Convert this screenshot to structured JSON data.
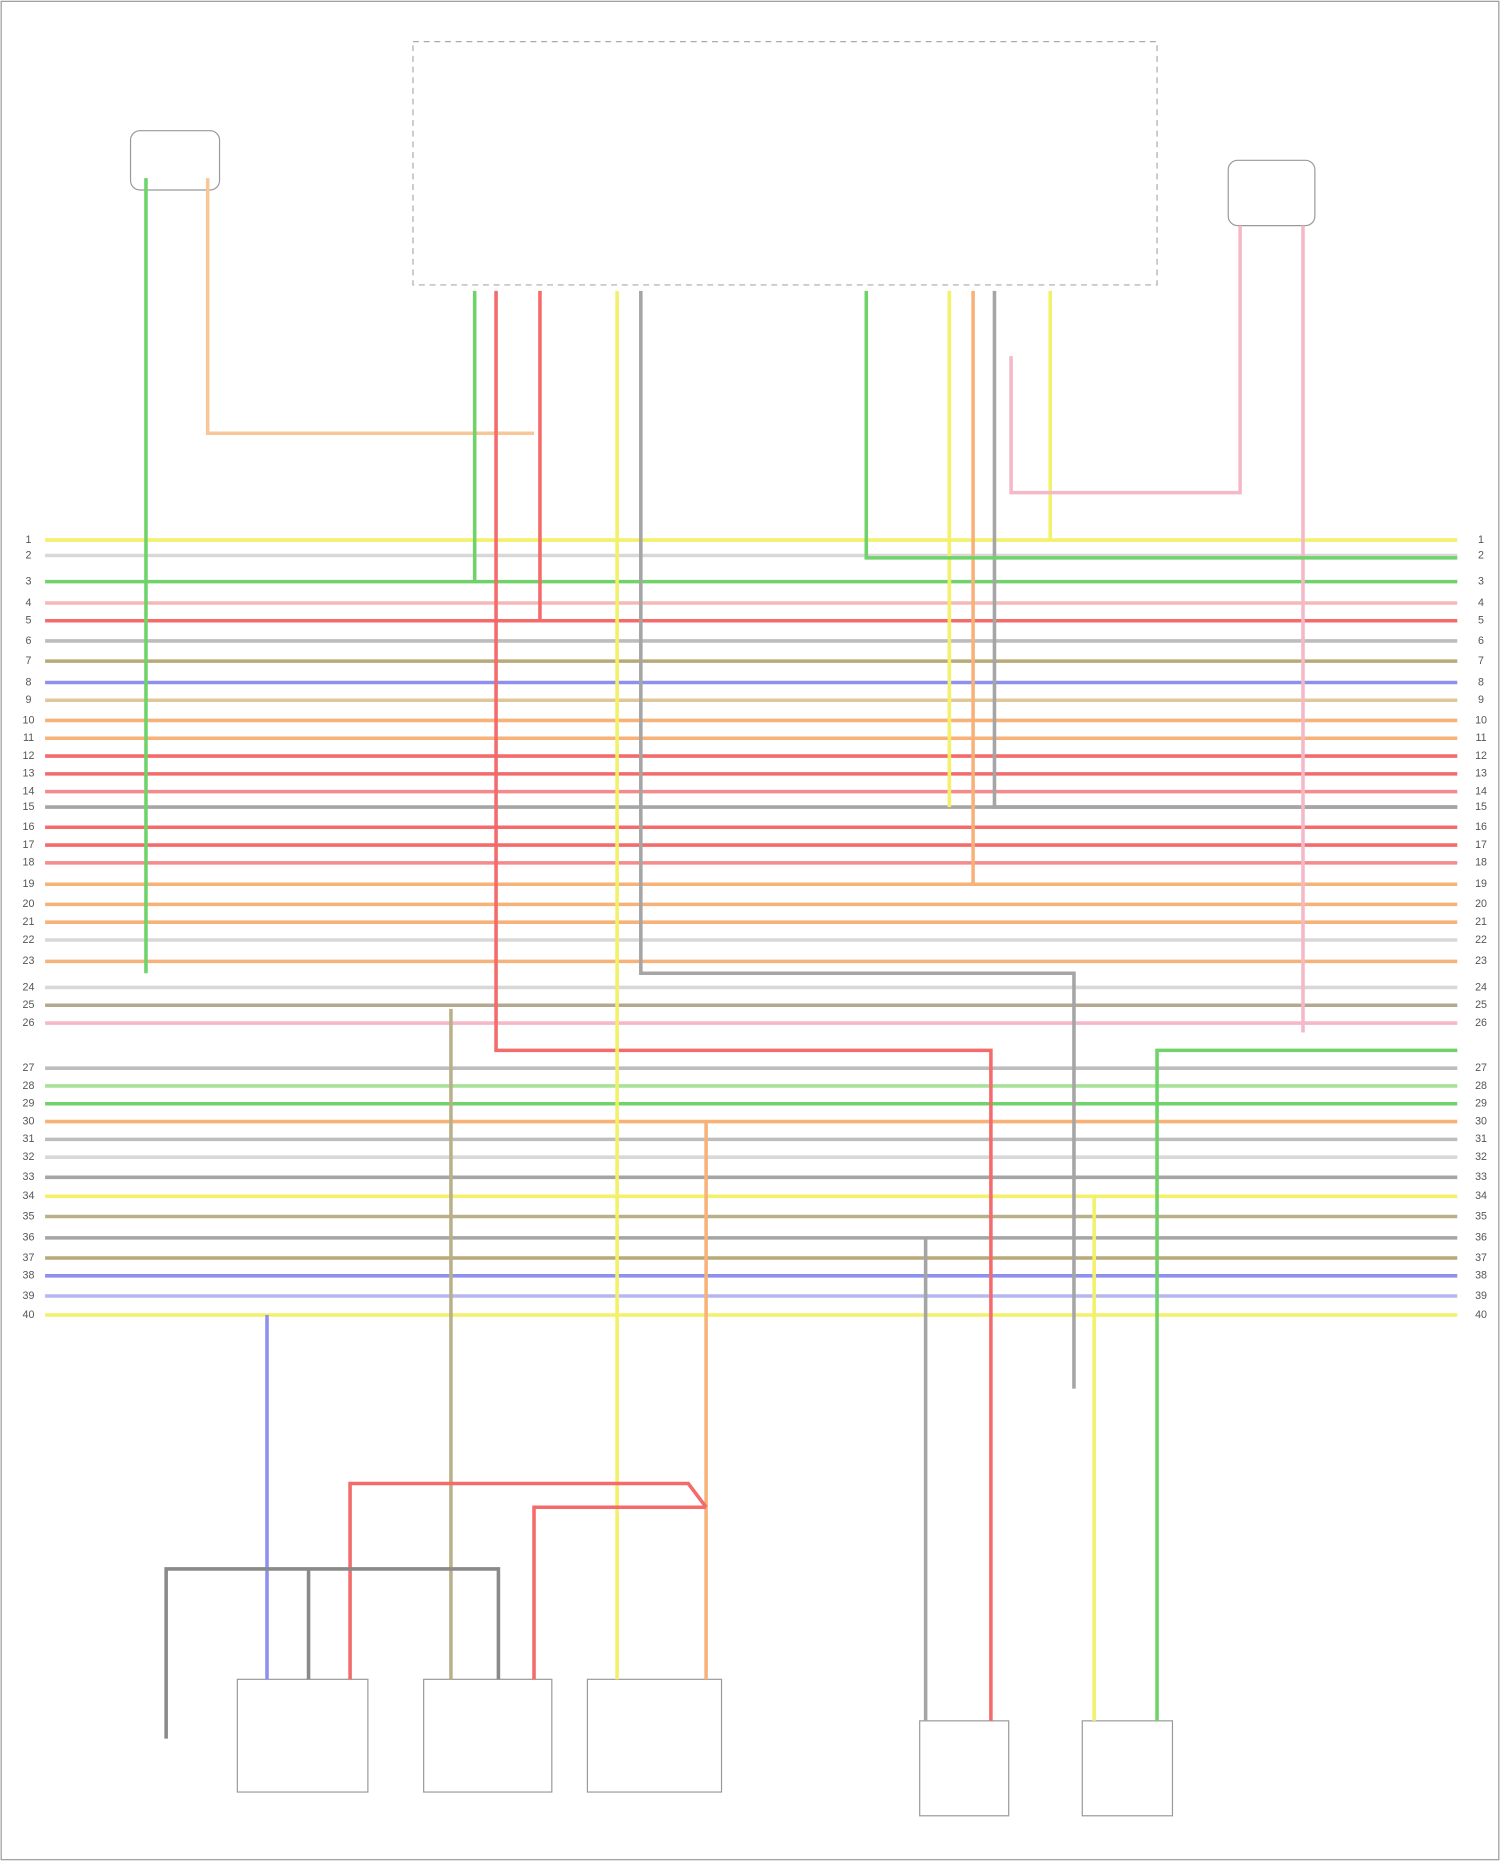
{
  "diagram": {
    "wire_rows": [
      {
        "number": "1",
        "color": "#f3f06a"
      },
      {
        "number": "2",
        "color": "#d8d8d8"
      },
      {
        "number": "3",
        "color": "#6fd36a"
      },
      {
        "number": "4",
        "color": "#f5b8b8"
      },
      {
        "number": "5",
        "color": "#f36b6b"
      },
      {
        "number": "6",
        "color": "#bdbdbd"
      },
      {
        "number": "7",
        "color": "#b9a878"
      },
      {
        "number": "8",
        "color": "#8f8ff0"
      },
      {
        "number": "9",
        "color": "#e0c79a"
      },
      {
        "number": "10",
        "color": "#f7b27a"
      },
      {
        "number": "11",
        "color": "#f7b27a"
      },
      {
        "number": "12",
        "color": "#f36b6b"
      },
      {
        "number": "13",
        "color": "#f36b6b"
      },
      {
        "number": "14",
        "color": "#f58a8a"
      },
      {
        "number": "15",
        "color": "#a5a5a5"
      },
      {
        "number": "16",
        "color": "#f36b6b"
      },
      {
        "number": "17",
        "color": "#f36b6b"
      },
      {
        "number": "18",
        "color": "#f58a8a"
      },
      {
        "number": "19",
        "color": "#f7b27a"
      },
      {
        "number": "20",
        "color": "#f7b27a"
      },
      {
        "number": "21",
        "color": "#f7b27a"
      },
      {
        "number": "22",
        "color": "#d8d8d8"
      },
      {
        "number": "23",
        "color": "#f7b27a"
      },
      {
        "number": "24",
        "color": "#d8d8d8"
      },
      {
        "number": "25",
        "color": "#b5a890"
      },
      {
        "number": "26",
        "color": "#f5b8c8"
      },
      {
        "number": "27",
        "color": "#bdbdbd"
      },
      {
        "number": "28",
        "color": "#a8e29a"
      },
      {
        "number": "29",
        "color": "#6fd36a"
      },
      {
        "number": "30",
        "color": "#f7b27a"
      },
      {
        "number": "31",
        "color": "#bdbdbd"
      },
      {
        "number": "32",
        "color": "#d8d8d8"
      },
      {
        "number": "33",
        "color": "#a5a5a5"
      },
      {
        "number": "34",
        "color": "#f3f06a"
      },
      {
        "number": "35",
        "color": "#b9b08a"
      },
      {
        "number": "36",
        "color": "#a5a5a5"
      },
      {
        "number": "37",
        "color": "#b9a878"
      },
      {
        "number": "38",
        "color": "#8f8ff0"
      },
      {
        "number": "39",
        "color": "#b7b7f0"
      },
      {
        "number": "40",
        "color": "#f3f06a"
      }
    ]
  }
}
